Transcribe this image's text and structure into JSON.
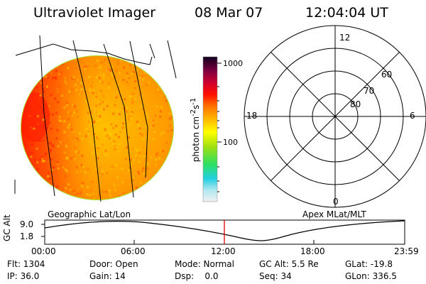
{
  "header": {
    "instrument": "Ultraviolet Imager",
    "date": "08 Mar 07",
    "time": "12:04:04 UT"
  },
  "colorbar": {
    "label_html": "photon cm<sup>-2</sup>s<sup>-1</sup>",
    "ticks": [
      "1000",
      "100"
    ]
  },
  "polar_plot": {
    "lat_labels": [
      "60",
      "70",
      "80"
    ],
    "mlt_labels": [
      "12",
      "18",
      "6",
      "0"
    ]
  },
  "left_caption": "Geographic Lat/Lon",
  "right_caption": "Apex MLat/MLT",
  "timeline": {
    "ylabel": "GC Alt",
    "yticks": [
      "9.0",
      "1.8"
    ],
    "xticks": [
      "00:00",
      "06:00",
      "12:00",
      "18:00",
      "23:59"
    ]
  },
  "footer": {
    "row1": [
      "Flt: 1304",
      "Door: Open",
      "Mode: Normal",
      "GC Alt: 5.5 Re",
      "GLat: -19.8"
    ],
    "row2": [
      "IP: 36.0",
      "Gain: 14",
      "Dsp:    0.0",
      "Seq: 34",
      "GLon: 336.5"
    ]
  },
  "colors": {
    "disk_main": "#ffb000",
    "disk_edge": "#a0e020",
    "disk_hot": "#ff2000",
    "marker": "#dd0000"
  }
}
